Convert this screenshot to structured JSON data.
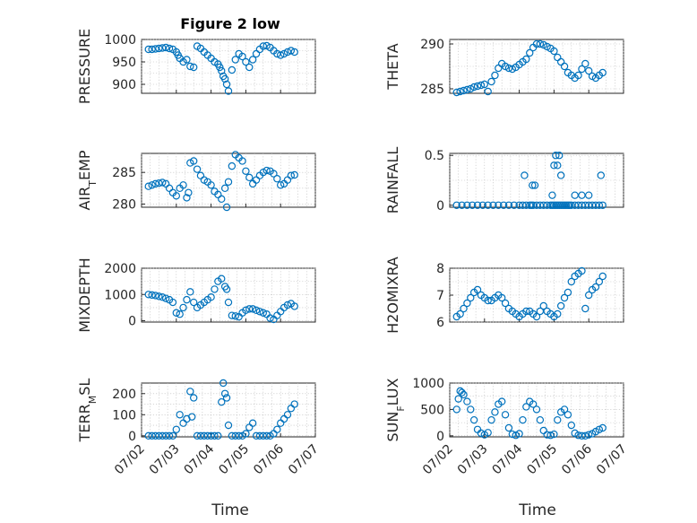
{
  "figure": {
    "title": "Figure 2 low",
    "xlabel": "Time",
    "marker_color": "#0072BD",
    "x_ticks": [
      "07/02",
      "07/03",
      "07/04",
      "07/05",
      "07/06",
      "07/07"
    ]
  },
  "chart_data": [
    {
      "type": "scatter",
      "ylabel": "PRESSURE",
      "title": "Figure 2 low",
      "xlim": [
        "07/02",
        "07/07"
      ],
      "ylim": [
        880,
        1000
      ],
      "yticks": [
        900,
        950,
        1000
      ],
      "ytick_labels": [
        "900",
        "950",
        "1000"
      ],
      "x_ticks": [
        "07/02",
        "07/03",
        "07/04",
        "07/05",
        "07/06",
        "07/07"
      ],
      "grid": true,
      "x": [
        2.2,
        2.3,
        2.4,
        2.5,
        2.6,
        2.7,
        2.8,
        2.9,
        3.0,
        3.05,
        3.1,
        3.2,
        3.3,
        3.4,
        3.5,
        3.6,
        3.7,
        3.8,
        3.9,
        4.0,
        4.1,
        4.2,
        4.25,
        4.3,
        4.35,
        4.4,
        4.45,
        4.5,
        4.6,
        4.7,
        4.8,
        4.9,
        5.0,
        5.1,
        5.2,
        5.3,
        5.4,
        5.5,
        5.6,
        5.7,
        5.8,
        5.9,
        6.0,
        6.1,
        6.2,
        6.3,
        6.4
      ],
      "y": [
        978,
        978,
        979,
        980,
        981,
        982,
        980,
        978,
        972,
        965,
        958,
        950,
        955,
        940,
        938,
        985,
        980,
        972,
        965,
        958,
        950,
        945,
        938,
        930,
        918,
        912,
        900,
        885,
        932,
        955,
        968,
        962,
        950,
        938,
        955,
        968,
        978,
        985,
        986,
        982,
        975,
        968,
        965,
        968,
        972,
        975,
        972
      ]
    },
    {
      "type": "scatter",
      "ylabel": "THETA",
      "xlim": [
        "07/02",
        "07/07"
      ],
      "ylim": [
        284.5,
        290.5
      ],
      "yticks": [
        285,
        290
      ],
      "ytick_labels": [
        "285",
        "290"
      ],
      "x_ticks": [
        "07/02",
        "07/03",
        "07/04",
        "07/05",
        "07/06",
        "07/07"
      ],
      "grid": true,
      "x": [
        2.2,
        2.3,
        2.4,
        2.5,
        2.6,
        2.7,
        2.8,
        2.9,
        3.0,
        3.1,
        3.2,
        3.3,
        3.4,
        3.5,
        3.6,
        3.7,
        3.8,
        3.9,
        4.0,
        4.1,
        4.2,
        4.3,
        4.4,
        4.5,
        4.6,
        4.7,
        4.8,
        4.9,
        5.0,
        5.1,
        5.2,
        5.3,
        5.4,
        5.5,
        5.6,
        5.7,
        5.8,
        5.9,
        6.0,
        6.1,
        6.2,
        6.3,
        6.4
      ],
      "y": [
        284.6,
        284.7,
        284.8,
        284.9,
        285.0,
        285.2,
        285.3,
        285.4,
        285.5,
        284.7,
        285.8,
        286.5,
        287.3,
        287.8,
        287.5,
        287.3,
        287.2,
        287.4,
        287.7,
        288.0,
        288.3,
        289.0,
        289.6,
        290.0,
        290.0,
        289.9,
        289.7,
        289.5,
        289.2,
        288.5,
        288.0,
        287.5,
        286.8,
        286.5,
        286.2,
        286.5,
        287.2,
        287.8,
        287.0,
        286.4,
        286.2,
        286.5,
        286.8
      ]
    },
    {
      "type": "scatter",
      "ylabel": "AIR_TEMP",
      "xlim": [
        "07/02",
        "07/07"
      ],
      "ylim": [
        279.5,
        288
      ],
      "yticks": [
        280,
        285
      ],
      "ytick_labels": [
        "280",
        "285"
      ],
      "x_ticks": [
        "07/02",
        "07/03",
        "07/04",
        "07/05",
        "07/06",
        "07/07"
      ],
      "grid": true,
      "x": [
        2.2,
        2.3,
        2.4,
        2.5,
        2.6,
        2.7,
        2.8,
        2.9,
        3.0,
        3.1,
        3.2,
        3.3,
        3.35,
        3.4,
        3.5,
        3.6,
        3.7,
        3.8,
        3.9,
        4.0,
        4.1,
        4.2,
        4.3,
        4.4,
        4.45,
        4.5,
        4.6,
        4.7,
        4.8,
        4.9,
        5.0,
        5.1,
        5.2,
        5.3,
        5.4,
        5.5,
        5.6,
        5.7,
        5.8,
        5.9,
        6.0,
        6.1,
        6.2,
        6.3,
        6.4
      ],
      "y": [
        282.8,
        283.0,
        283.2,
        283.3,
        283.4,
        283.2,
        282.5,
        281.8,
        281.3,
        282.5,
        283.0,
        281.0,
        281.8,
        286.5,
        286.8,
        285.5,
        284.5,
        283.8,
        283.5,
        283.0,
        282.0,
        281.5,
        280.8,
        282.5,
        279.5,
        283.5,
        286.0,
        287.8,
        287.3,
        286.8,
        285.2,
        284.2,
        283.2,
        283.8,
        284.5,
        285.0,
        285.3,
        285.2,
        284.8,
        284.0,
        283.0,
        283.2,
        283.8,
        284.5,
        284.6
      ]
    },
    {
      "type": "scatter",
      "ylabel": "RAINFALL",
      "xlim": [
        "07/02",
        "07/07"
      ],
      "ylim": [
        -0.02,
        0.52
      ],
      "yticks": [
        0,
        0.5
      ],
      "ytick_labels": [
        "0",
        "0.5"
      ],
      "x_ticks": [
        "07/02",
        "07/03",
        "07/04",
        "07/05",
        "07/06",
        "07/07"
      ],
      "grid": true,
      "x": [
        2.2,
        2.35,
        2.5,
        2.65,
        2.8,
        2.95,
        3.1,
        3.25,
        3.4,
        3.55,
        3.7,
        3.85,
        4.0,
        4.1,
        4.2,
        4.3,
        4.35,
        4.4,
        4.5,
        4.6,
        4.7,
        4.8,
        4.9,
        4.95,
        5.0,
        5.05,
        5.1,
        5.15,
        5.2,
        5.25,
        5.3,
        5.35,
        5.4,
        5.45,
        5.5,
        5.6,
        5.7,
        5.8,
        5.9,
        6.0,
        6.1,
        6.2,
        6.3,
        6.4,
        4.15,
        4.38,
        4.45,
        4.95,
        5.0,
        5.05,
        5.1,
        5.15,
        5.2,
        5.6,
        5.8,
        6.0,
        6.35
      ],
      "y": [
        0,
        0,
        0,
        0,
        0,
        0,
        0,
        0,
        0,
        0,
        0,
        0,
        0,
        0,
        0,
        0,
        0,
        0,
        0,
        0,
        0,
        0,
        0,
        0,
        0,
        0,
        0,
        0,
        0,
        0,
        0,
        0,
        0,
        0,
        0,
        0,
        0,
        0,
        0,
        0,
        0,
        0,
        0,
        0,
        0.3,
        0.2,
        0.2,
        0.1,
        0.4,
        0.5,
        0.4,
        0.5,
        0.3,
        0.1,
        0.1,
        0.1,
        0.3
      ]
    },
    {
      "type": "scatter",
      "ylabel": "MIXDEPTH",
      "xlim": [
        "07/02",
        "07/07"
      ],
      "ylim": [
        -50,
        2000
      ],
      "yticks": [
        0,
        1000,
        2000
      ],
      "ytick_labels": [
        "0",
        "1000",
        "2000"
      ],
      "x_ticks": [
        "07/02",
        "07/03",
        "07/04",
        "07/05",
        "07/06",
        "07/07"
      ],
      "grid": true,
      "x": [
        2.2,
        2.3,
        2.4,
        2.5,
        2.6,
        2.7,
        2.8,
        2.9,
        3.0,
        3.1,
        3.2,
        3.3,
        3.4,
        3.5,
        3.6,
        3.7,
        3.8,
        3.9,
        4.0,
        4.1,
        4.2,
        4.3,
        4.4,
        4.45,
        4.5,
        4.6,
        4.7,
        4.8,
        4.9,
        5.0,
        5.1,
        5.2,
        5.3,
        5.4,
        5.5,
        5.6,
        5.7,
        5.8,
        5.9,
        6.0,
        6.1,
        6.2,
        6.3,
        6.4
      ],
      "y": [
        1000,
        980,
        960,
        930,
        900,
        850,
        800,
        700,
        300,
        250,
        500,
        800,
        1100,
        700,
        500,
        600,
        700,
        800,
        900,
        1200,
        1500,
        1600,
        1300,
        1200,
        700,
        200,
        180,
        150,
        300,
        400,
        450,
        450,
        400,
        350,
        300,
        250,
        100,
        50,
        200,
        350,
        500,
        600,
        650,
        550
      ]
    },
    {
      "type": "scatter",
      "ylabel": "H2OMIXRA",
      "xlim": [
        "07/02",
        "07/07"
      ],
      "ylim": [
        6,
        8
      ],
      "yticks": [
        6,
        7,
        8
      ],
      "ytick_labels": [
        "6",
        "7",
        "8"
      ],
      "x_ticks": [
        "07/02",
        "07/03",
        "07/04",
        "07/05",
        "07/06",
        "07/07"
      ],
      "grid": true,
      "x": [
        2.2,
        2.3,
        2.4,
        2.5,
        2.6,
        2.7,
        2.8,
        2.9,
        3.0,
        3.1,
        3.2,
        3.3,
        3.4,
        3.5,
        3.6,
        3.7,
        3.8,
        3.9,
        4.0,
        4.1,
        4.2,
        4.3,
        4.4,
        4.5,
        4.6,
        4.7,
        4.8,
        4.9,
        5.0,
        5.1,
        5.2,
        5.3,
        5.4,
        5.5,
        5.6,
        5.7,
        5.8,
        5.9,
        6.0,
        6.1,
        6.2,
        6.3,
        6.4
      ],
      "y": [
        6.2,
        6.3,
        6.5,
        6.7,
        6.9,
        7.1,
        7.2,
        7.0,
        6.9,
        6.8,
        6.8,
        6.9,
        7.0,
        6.9,
        6.7,
        6.5,
        6.4,
        6.3,
        6.2,
        6.3,
        6.4,
        6.4,
        6.3,
        6.2,
        6.4,
        6.6,
        6.4,
        6.3,
        6.2,
        6.3,
        6.6,
        6.9,
        7.1,
        7.5,
        7.7,
        7.8,
        7.9,
        6.5,
        7.0,
        7.2,
        7.3,
        7.5,
        7.7
      ]
    },
    {
      "type": "scatter",
      "ylabel": "TERR_MSL",
      "xlim": [
        "07/02",
        "07/07"
      ],
      "ylim": [
        -5,
        250
      ],
      "yticks": [
        0,
        100,
        200
      ],
      "ytick_labels": [
        "0",
        "100",
        "200"
      ],
      "x_ticks": [
        "07/02",
        "07/03",
        "07/04",
        "07/05",
        "07/06",
        "07/07"
      ],
      "grid": true,
      "x": [
        2.2,
        2.3,
        2.4,
        2.5,
        2.6,
        2.7,
        2.8,
        2.9,
        3.0,
        3.1,
        3.2,
        3.3,
        3.4,
        3.45,
        3.5,
        3.6,
        3.7,
        3.8,
        3.9,
        4.0,
        4.1,
        4.2,
        4.3,
        4.35,
        4.4,
        4.45,
        4.5,
        4.6,
        4.7,
        4.8,
        4.9,
        5.0,
        5.1,
        5.2,
        5.3,
        5.4,
        5.5,
        5.6,
        5.7,
        5.8,
        5.9,
        6.0,
        6.1,
        6.2,
        6.3,
        6.4
      ],
      "y": [
        0,
        0,
        0,
        0,
        0,
        0,
        0,
        0,
        30,
        100,
        60,
        80,
        210,
        90,
        180,
        0,
        0,
        0,
        0,
        0,
        0,
        0,
        160,
        250,
        200,
        180,
        50,
        0,
        0,
        0,
        0,
        10,
        40,
        60,
        0,
        0,
        0,
        0,
        0,
        10,
        30,
        60,
        80,
        100,
        130,
        150
      ]
    },
    {
      "type": "scatter",
      "ylabel": "SUN_FLUX",
      "xlim": [
        "07/02",
        "07/07"
      ],
      "ylim": [
        -20,
        1000
      ],
      "yticks": [
        0,
        500,
        1000
      ],
      "ytick_labels": [
        "0",
        "500",
        "1000"
      ],
      "x_ticks": [
        "07/02",
        "07/03",
        "07/04",
        "07/05",
        "07/06",
        "07/07"
      ],
      "grid": true,
      "x": [
        2.2,
        2.25,
        2.3,
        2.35,
        2.4,
        2.5,
        2.6,
        2.7,
        2.8,
        2.9,
        3.0,
        3.1,
        3.2,
        3.3,
        3.4,
        3.5,
        3.6,
        3.7,
        3.8,
        3.9,
        4.0,
        4.1,
        4.2,
        4.3,
        4.4,
        4.5,
        4.6,
        4.7,
        4.8,
        4.9,
        5.0,
        5.1,
        5.2,
        5.3,
        5.4,
        5.5,
        5.6,
        5.7,
        5.8,
        5.9,
        6.0,
        6.1,
        6.2,
        6.3,
        6.4
      ],
      "y": [
        500,
        700,
        850,
        820,
        780,
        650,
        500,
        300,
        120,
        50,
        20,
        60,
        300,
        450,
        600,
        650,
        400,
        150,
        30,
        10,
        40,
        300,
        550,
        650,
        600,
        500,
        300,
        100,
        20,
        10,
        30,
        300,
        450,
        500,
        400,
        200,
        50,
        10,
        0,
        0,
        20,
        40,
        80,
        120,
        150
      ]
    }
  ]
}
